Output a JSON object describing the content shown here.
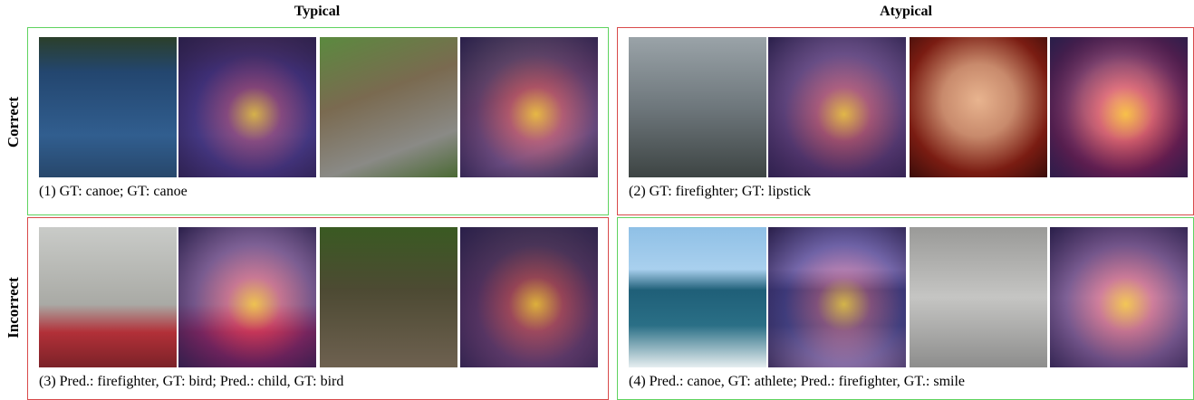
{
  "header": {
    "columns": [
      "Typical",
      "Atypical"
    ],
    "rows": [
      "Correct",
      "Incorrect"
    ]
  },
  "panels": [
    {
      "caption": "(1) GT: canoe; GT: canoe"
    },
    {
      "caption": "(2) GT: firefighter; GT: lipstick"
    },
    {
      "caption": "(3) Pred.: firefighter, GT: bird; Pred.: child, GT: bird"
    },
    {
      "caption": "(4) Pred.: canoe, GT: athlete; Pred.: firefighter, GT.: smile"
    }
  ]
}
